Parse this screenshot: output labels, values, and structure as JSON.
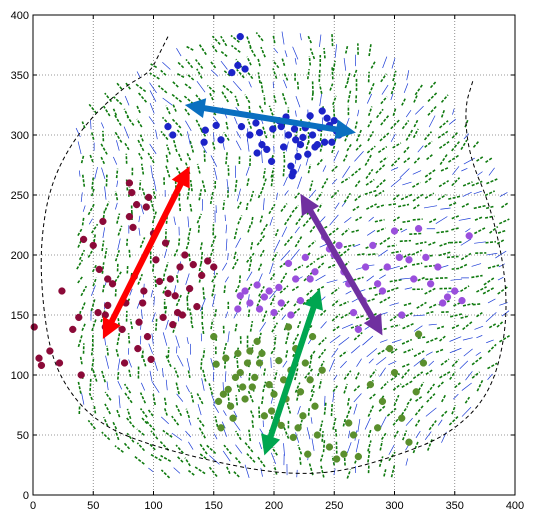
{
  "chart_data": {
    "type": "scatter",
    "title": "",
    "xlabel": "",
    "ylabel": "",
    "xlim": [
      0,
      400
    ],
    "ylim": [
      0,
      400
    ],
    "xticks": [
      0,
      50,
      100,
      150,
      200,
      250,
      300,
      350,
      400
    ],
    "yticks": [
      0,
      50,
      100,
      150,
      200,
      250,
      300,
      350,
      400
    ],
    "xtick_labels": [
      "0",
      "50",
      "100",
      "150",
      "200",
      "250",
      "300",
      "350",
      "400"
    ],
    "ytick_labels": [
      "0",
      "50",
      "100",
      "150",
      "200",
      "250",
      "300",
      "350",
      "400"
    ],
    "grid": "dotted",
    "legend": "none",
    "boundary": {
      "style": "dashed",
      "color": "#000000",
      "points": [
        [
          112,
          382
        ],
        [
          104,
          366
        ],
        [
          97,
          352
        ],
        [
          75,
          340
        ],
        [
          40,
          306
        ],
        [
          15,
          262
        ],
        [
          6,
          210
        ],
        [
          8,
          158
        ],
        [
          16,
          112
        ],
        [
          34,
          80
        ],
        [
          58,
          58
        ],
        [
          90,
          44
        ],
        [
          140,
          30
        ],
        [
          200,
          18
        ],
        [
          250,
          18
        ],
        [
          300,
          32
        ],
        [
          345,
          50
        ],
        [
          378,
          82
        ],
        [
          392,
          130
        ],
        [
          393,
          180
        ],
        [
          380,
          240
        ],
        [
          362,
          282
        ],
        [
          358,
          322
        ],
        [
          365,
          345
        ]
      ]
    },
    "series": [
      {
        "marker_color": "#8b0a38",
        "values": [
          [
            1,
            140
          ],
          [
            5,
            114
          ],
          [
            7,
            108
          ],
          [
            14,
            120
          ],
          [
            22,
            110
          ],
          [
            24,
            170
          ],
          [
            33,
            138
          ],
          [
            38,
            148
          ],
          [
            40,
            100
          ],
          [
            42,
            213
          ],
          [
            50,
            208
          ],
          [
            54,
            152
          ],
          [
            55,
            188
          ],
          [
            58,
            228
          ],
          [
            60,
            150
          ],
          [
            60,
            140
          ],
          [
            62,
            180
          ],
          [
            62,
            158
          ],
          [
            66,
            176
          ],
          [
            74,
            138
          ],
          [
            76,
            110
          ],
          [
            77,
            160
          ],
          [
            80,
            232
          ],
          [
            80,
            260
          ],
          [
            82,
            252
          ],
          [
            83,
            223
          ],
          [
            84,
            182
          ],
          [
            86,
            242
          ],
          [
            87,
            122
          ],
          [
            88,
            144
          ],
          [
            91,
            160
          ],
          [
            92,
            170
          ],
          [
            94,
            240
          ],
          [
            95,
            132
          ],
          [
            96,
            248
          ],
          [
            98,
            113
          ],
          [
            100,
            218
          ],
          [
            102,
            196
          ],
          [
            105,
            178
          ],
          [
            108,
            148
          ],
          [
            110,
            210
          ],
          [
            112,
            168
          ],
          [
            114,
            180
          ],
          [
            116,
            142
          ],
          [
            118,
            166
          ],
          [
            120,
            152
          ],
          [
            122,
            190
          ],
          [
            124,
            150
          ],
          [
            126,
            200
          ],
          [
            130,
            172
          ],
          [
            133,
            192
          ],
          [
            136,
            157
          ],
          [
            140,
            183
          ],
          [
            145,
            195
          ],
          [
            150,
            190
          ]
        ]
      },
      {
        "marker_color": "#1c23c8",
        "values": [
          [
            112,
            307
          ],
          [
            116,
            300
          ],
          [
            142,
            294
          ],
          [
            143,
            304
          ],
          [
            152,
            308
          ],
          [
            156,
            296
          ],
          [
            165,
            352
          ],
          [
            170,
            358
          ],
          [
            172,
            382
          ],
          [
            173,
            307
          ],
          [
            176,
            355
          ],
          [
            180,
            300
          ],
          [
            185,
            310
          ],
          [
            186,
            285
          ],
          [
            188,
            302
          ],
          [
            190,
            292
          ],
          [
            194,
            288
          ],
          [
            198,
            278
          ],
          [
            199,
            305
          ],
          [
            204,
            312
          ],
          [
            206,
            307
          ],
          [
            208,
            290
          ],
          [
            210,
            315
          ],
          [
            212,
            300
          ],
          [
            214,
            274
          ],
          [
            215,
            266
          ],
          [
            216,
            269
          ],
          [
            217,
            305
          ],
          [
            218,
            296
          ],
          [
            220,
            282
          ],
          [
            222,
            292
          ],
          [
            224,
            298
          ],
          [
            226,
            306
          ],
          [
            228,
            284
          ],
          [
            230,
            316
          ],
          [
            232,
            300
          ],
          [
            234,
            290
          ],
          [
            236,
            292
          ],
          [
            238,
            306
          ],
          [
            240,
            320
          ],
          [
            242,
            294
          ],
          [
            244,
            314
          ],
          [
            246,
            308
          ],
          [
            248,
            294
          ],
          [
            250,
            312
          ],
          [
            252,
            303
          ],
          [
            254,
            300
          ]
        ]
      },
      {
        "marker_color": "#9a4fdc",
        "values": [
          [
            170,
            155
          ],
          [
            172,
            166
          ],
          [
            176,
            170
          ],
          [
            180,
            160
          ],
          [
            186,
            175
          ],
          [
            188,
            155
          ],
          [
            192,
            165
          ],
          [
            196,
            170
          ],
          [
            200,
            152
          ],
          [
            204,
            173
          ],
          [
            206,
            160
          ],
          [
            212,
            193
          ],
          [
            214,
            150
          ],
          [
            218,
            180
          ],
          [
            222,
            162
          ],
          [
            226,
            198
          ],
          [
            230,
            180
          ],
          [
            234,
            186
          ],
          [
            236,
            160
          ],
          [
            242,
            215
          ],
          [
            246,
            205
          ],
          [
            250,
            200
          ],
          [
            254,
            208
          ],
          [
            258,
            186
          ],
          [
            262,
            176
          ],
          [
            266,
            152
          ],
          [
            270,
            138
          ],
          [
            274,
            162
          ],
          [
            276,
            190
          ],
          [
            282,
            208
          ],
          [
            286,
            176
          ],
          [
            290,
            170
          ],
          [
            294,
            190
          ],
          [
            300,
            220
          ],
          [
            304,
            198
          ],
          [
            306,
            150
          ],
          [
            312,
            196
          ],
          [
            316,
            180
          ],
          [
            320,
            222
          ],
          [
            326,
            198
          ],
          [
            330,
            176
          ],
          [
            336,
            190
          ],
          [
            340,
            160
          ],
          [
            344,
            165
          ],
          [
            350,
            170
          ],
          [
            356,
            162
          ],
          [
            362,
            216
          ]
        ]
      },
      {
        "marker_color": "#5a8f2d",
        "values": [
          [
            150,
            132
          ],
          [
            152,
            109
          ],
          [
            154,
            78
          ],
          [
            156,
            56
          ],
          [
            158,
            84
          ],
          [
            160,
            114
          ],
          [
            162,
            88
          ],
          [
            164,
            74
          ],
          [
            166,
            64
          ],
          [
            168,
            98
          ],
          [
            170,
            118
          ],
          [
            172,
            102
          ],
          [
            174,
            90
          ],
          [
            176,
            80
          ],
          [
            178,
            110
          ],
          [
            180,
            120
          ],
          [
            182,
            90
          ],
          [
            184,
            98
          ],
          [
            186,
            128
          ],
          [
            188,
            110
          ],
          [
            190,
            118
          ],
          [
            192,
            66
          ],
          [
            194,
            40
          ],
          [
            196,
            92
          ],
          [
            198,
            70
          ],
          [
            200,
            84
          ],
          [
            202,
            62
          ],
          [
            204,
            112
          ],
          [
            206,
            58
          ],
          [
            208,
            96
          ],
          [
            210,
            80
          ],
          [
            212,
            140
          ],
          [
            214,
            104
          ],
          [
            216,
            48
          ],
          [
            218,
            122
          ],
          [
            220,
            56
          ],
          [
            222,
            86
          ],
          [
            224,
            66
          ],
          [
            226,
            110
          ],
          [
            228,
            34
          ],
          [
            230,
            96
          ],
          [
            232,
            132
          ],
          [
            234,
            74
          ],
          [
            236,
            50
          ],
          [
            240,
            104
          ],
          [
            246,
            40
          ],
          [
            252,
            30
          ],
          [
            258,
            34
          ],
          [
            262,
            60
          ],
          [
            266,
            50
          ],
          [
            270,
            32
          ],
          [
            280,
            92
          ],
          [
            286,
            56
          ],
          [
            290,
            78
          ],
          [
            296,
            122
          ],
          [
            300,
            102
          ],
          [
            306,
            64
          ],
          [
            312,
            44
          ],
          [
            318,
            86
          ],
          [
            320,
            134
          ],
          [
            324,
            110
          ]
        ]
      }
    ],
    "arrows": [
      {
        "color": "#ff0000",
        "from": [
          58,
          130
        ],
        "to": [
          130,
          274
        ]
      },
      {
        "color": "#0a6fc0",
        "from": [
          126,
          325
        ],
        "to": [
          268,
          302
        ]
      },
      {
        "color": "#7030a0",
        "from": [
          222,
          251
        ],
        "to": [
          290,
          133
        ]
      },
      {
        "color": "#00a650",
        "from": [
          192,
          33
        ],
        "to": [
          238,
          172
        ]
      }
    ],
    "flow_field_colors": [
      "#0f7a0f",
      "#1a3bd6"
    ]
  }
}
